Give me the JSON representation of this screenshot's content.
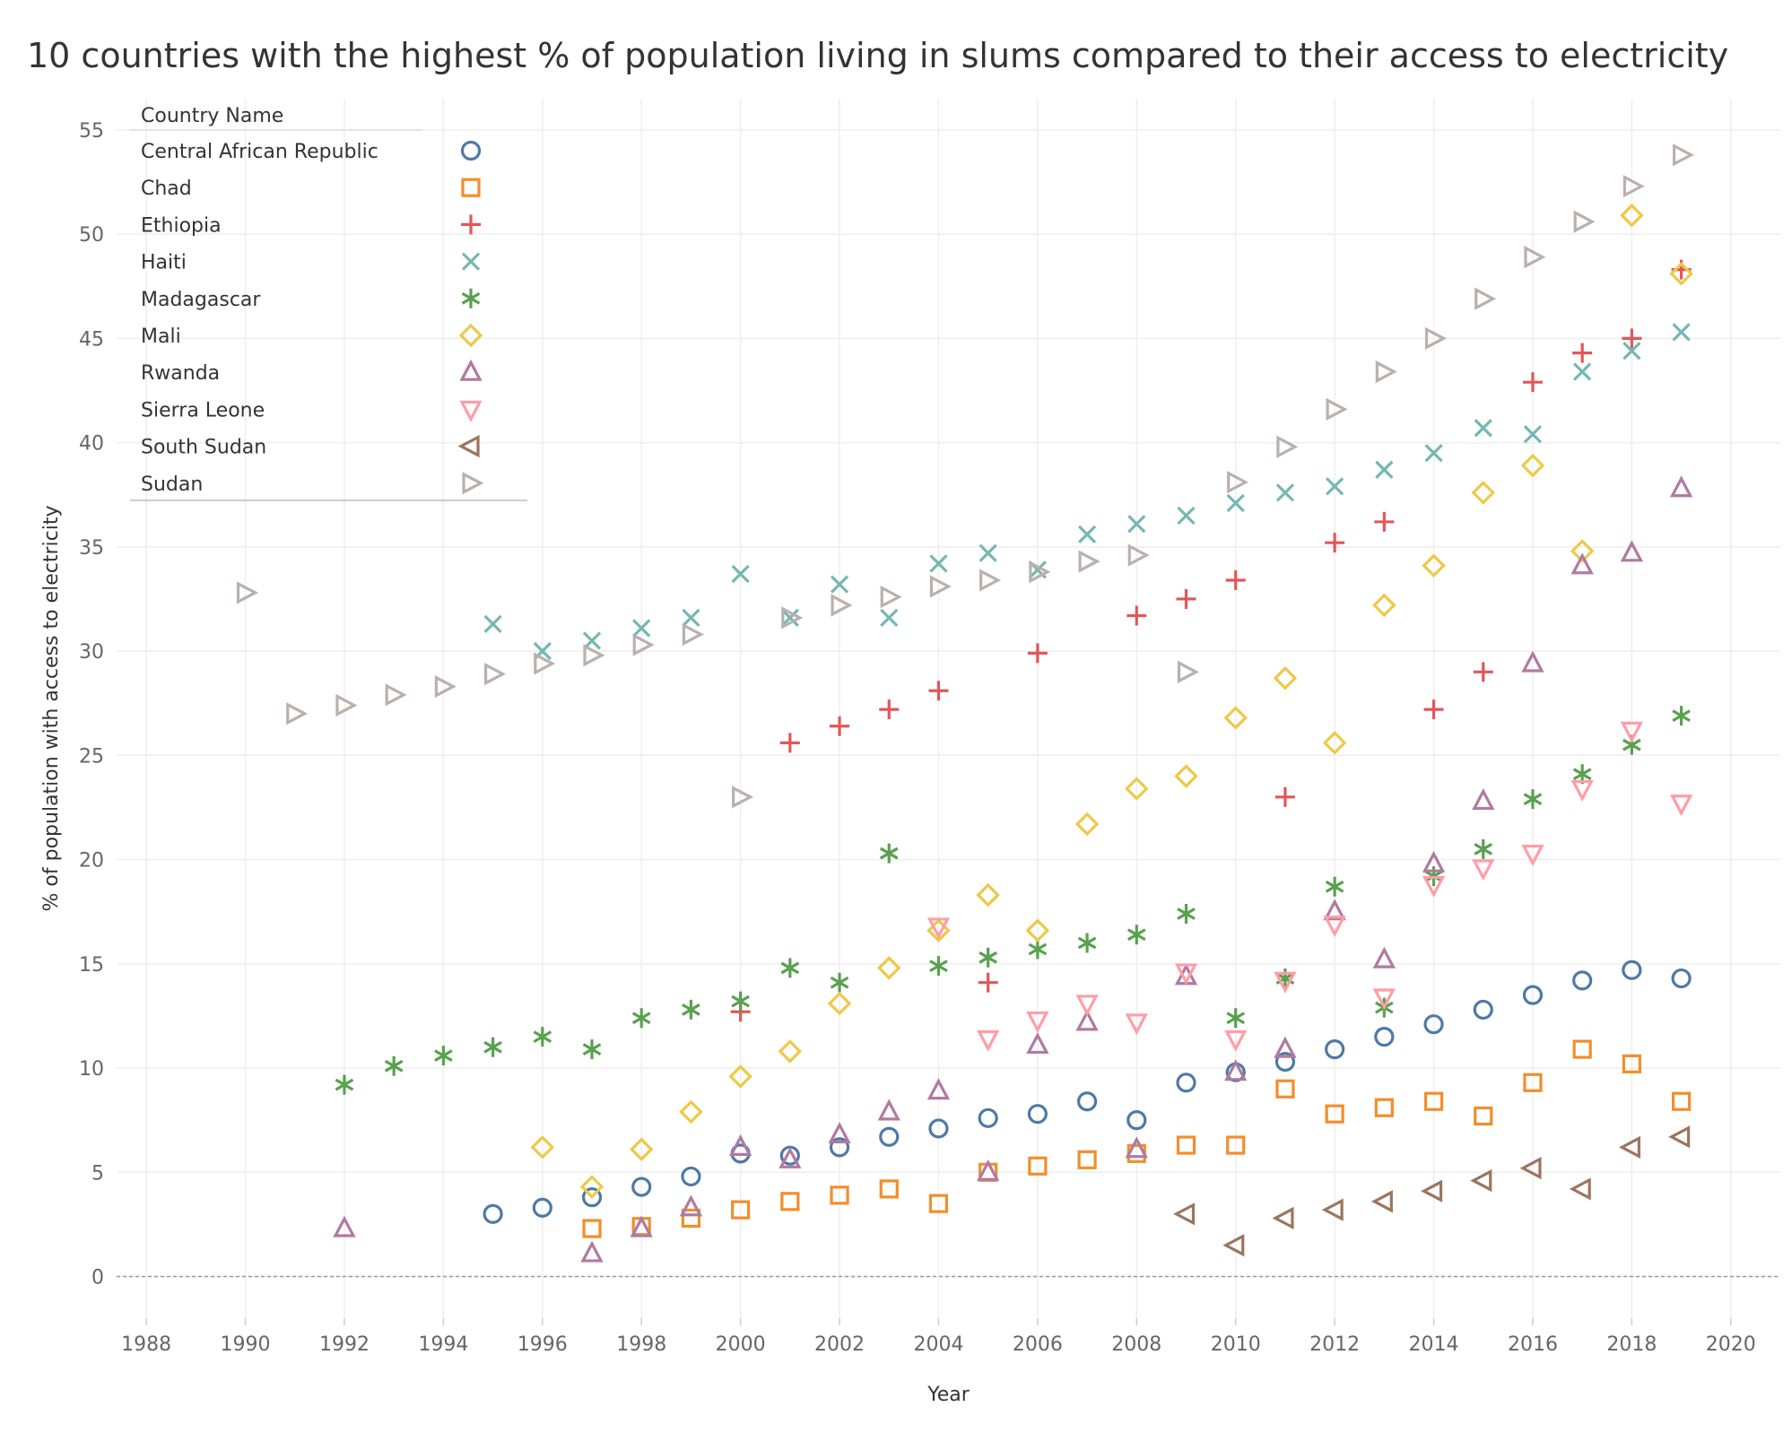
{
  "chart_data": {
    "type": "scatter",
    "title": "10 countries with the highest % of population living in slums compared to their access to electricity",
    "xlabel": "Year",
    "ylabel": "% of population with access to electricity",
    "xlim": [
      1987.4,
      2021
    ],
    "ylim": [
      -2,
      56.5
    ],
    "x_ticks": [
      1988,
      1990,
      1992,
      1994,
      1996,
      1998,
      2000,
      2002,
      2004,
      2006,
      2008,
      2010,
      2012,
      2014,
      2016,
      2018,
      2020
    ],
    "y_ticks": [
      0,
      5,
      10,
      15,
      20,
      25,
      30,
      35,
      40,
      45,
      50,
      55
    ],
    "grid": true,
    "legend": {
      "title": "Country Name",
      "placement": "top-left"
    },
    "series": [
      {
        "name": "Central African Republic",
        "color": "#4e79a7",
        "marker": "circle",
        "points": [
          [
            1995,
            3.0
          ],
          [
            1996,
            3.3
          ],
          [
            1997,
            3.8
          ],
          [
            1998,
            4.3
          ],
          [
            1999,
            4.8
          ],
          [
            2000,
            5.9
          ],
          [
            2001,
            5.8
          ],
          [
            2002,
            6.2
          ],
          [
            2003,
            6.7
          ],
          [
            2004,
            7.1
          ],
          [
            2005,
            7.6
          ],
          [
            2006,
            7.8
          ],
          [
            2007,
            8.4
          ],
          [
            2008,
            7.5
          ],
          [
            2009,
            9.3
          ],
          [
            2010,
            9.8
          ],
          [
            2011,
            10.3
          ],
          [
            2012,
            10.9
          ],
          [
            2013,
            11.5
          ],
          [
            2014,
            12.1
          ],
          [
            2015,
            12.8
          ],
          [
            2016,
            13.5
          ],
          [
            2017,
            14.2
          ],
          [
            2018,
            14.7
          ],
          [
            2019,
            14.3
          ]
        ]
      },
      {
        "name": "Chad",
        "color": "#f28e2b",
        "marker": "square",
        "points": [
          [
            1997,
            2.3
          ],
          [
            1998,
            2.4
          ],
          [
            1999,
            2.8
          ],
          [
            2000,
            3.2
          ],
          [
            2001,
            3.6
          ],
          [
            2002,
            3.9
          ],
          [
            2003,
            4.2
          ],
          [
            2004,
            3.5
          ],
          [
            2005,
            5.0
          ],
          [
            2006,
            5.3
          ],
          [
            2007,
            5.6
          ],
          [
            2008,
            5.9
          ],
          [
            2009,
            6.3
          ],
          [
            2010,
            6.3
          ],
          [
            2011,
            9.0
          ],
          [
            2012,
            7.8
          ],
          [
            2013,
            8.1
          ],
          [
            2014,
            8.4
          ],
          [
            2015,
            7.7
          ],
          [
            2016,
            9.3
          ],
          [
            2017,
            10.9
          ],
          [
            2018,
            10.2
          ],
          [
            2019,
            8.4
          ]
        ]
      },
      {
        "name": "Ethiopia",
        "color": "#e15759",
        "marker": "plus",
        "points": [
          [
            2000,
            12.7
          ],
          [
            2001,
            25.6
          ],
          [
            2002,
            26.4
          ],
          [
            2003,
            27.2
          ],
          [
            2004,
            28.1
          ],
          [
            2005,
            14.1
          ],
          [
            2006,
            29.9
          ],
          [
            2008,
            31.7
          ],
          [
            2009,
            32.5
          ],
          [
            2010,
            33.4
          ],
          [
            2011,
            23.0
          ],
          [
            2012,
            35.2
          ],
          [
            2013,
            36.2
          ],
          [
            2014,
            27.2
          ],
          [
            2015,
            29.0
          ],
          [
            2016,
            42.9
          ],
          [
            2017,
            44.3
          ],
          [
            2018,
            45.0
          ],
          [
            2019,
            48.3
          ]
        ]
      },
      {
        "name": "Haiti",
        "color": "#76b7b2",
        "marker": "x",
        "points": [
          [
            1995,
            31.3
          ],
          [
            1996,
            30.0
          ],
          [
            1997,
            30.5
          ],
          [
            1998,
            31.1
          ],
          [
            1999,
            31.6
          ],
          [
            2000,
            33.7
          ],
          [
            2001,
            31.6
          ],
          [
            2002,
            33.2
          ],
          [
            2003,
            31.6
          ],
          [
            2004,
            34.2
          ],
          [
            2005,
            34.7
          ],
          [
            2006,
            33.9
          ],
          [
            2007,
            35.6
          ],
          [
            2008,
            36.1
          ],
          [
            2009,
            36.5
          ],
          [
            2010,
            37.1
          ],
          [
            2011,
            37.6
          ],
          [
            2012,
            37.9
          ],
          [
            2013,
            38.7
          ],
          [
            2014,
            39.5
          ],
          [
            2015,
            40.7
          ],
          [
            2016,
            40.4
          ],
          [
            2017,
            43.4
          ],
          [
            2018,
            44.4
          ],
          [
            2019,
            45.3
          ]
        ]
      },
      {
        "name": "Madagascar",
        "color": "#59a14f",
        "marker": "asterisk",
        "points": [
          [
            1992,
            9.2
          ],
          [
            1993,
            10.1
          ],
          [
            1994,
            10.6
          ],
          [
            1995,
            11.0
          ],
          [
            1996,
            11.5
          ],
          [
            1997,
            10.9
          ],
          [
            1998,
            12.4
          ],
          [
            1999,
            12.8
          ],
          [
            2000,
            13.2
          ],
          [
            2001,
            14.8
          ],
          [
            2002,
            14.1
          ],
          [
            2003,
            20.3
          ],
          [
            2004,
            14.9
          ],
          [
            2005,
            15.3
          ],
          [
            2006,
            15.7
          ],
          [
            2007,
            16.0
          ],
          [
            2008,
            16.4
          ],
          [
            2009,
            17.4
          ],
          [
            2010,
            12.4
          ],
          [
            2011,
            14.3
          ],
          [
            2012,
            18.7
          ],
          [
            2013,
            12.9
          ],
          [
            2014,
            19.2
          ],
          [
            2015,
            20.5
          ],
          [
            2016,
            22.9
          ],
          [
            2017,
            24.1
          ],
          [
            2018,
            25.5
          ],
          [
            2019,
            26.9
          ]
        ]
      },
      {
        "name": "Mali",
        "color": "#edc948",
        "marker": "diamond",
        "points": [
          [
            1996,
            6.2
          ],
          [
            1997,
            4.3
          ],
          [
            1998,
            6.1
          ],
          [
            1999,
            7.9
          ],
          [
            2000,
            9.6
          ],
          [
            2001,
            10.8
          ],
          [
            2002,
            13.1
          ],
          [
            2003,
            14.8
          ],
          [
            2004,
            16.6
          ],
          [
            2005,
            18.3
          ],
          [
            2006,
            16.6
          ],
          [
            2007,
            21.7
          ],
          [
            2008,
            23.4
          ],
          [
            2009,
            24.0
          ],
          [
            2010,
            26.8
          ],
          [
            2011,
            28.7
          ],
          [
            2012,
            25.6
          ],
          [
            2013,
            32.2
          ],
          [
            2014,
            34.1
          ],
          [
            2015,
            37.6
          ],
          [
            2016,
            38.9
          ],
          [
            2017,
            34.8
          ],
          [
            2018,
            50.9
          ],
          [
            2019,
            48.1
          ]
        ]
      },
      {
        "name": "Rwanda",
        "color": "#b07aa1",
        "marker": "triangle-up",
        "points": [
          [
            1992,
            2.3
          ],
          [
            1997,
            1.1
          ],
          [
            1998,
            2.3
          ],
          [
            1999,
            3.3
          ],
          [
            2000,
            6.2
          ],
          [
            2001,
            5.6
          ],
          [
            2002,
            6.8
          ],
          [
            2003,
            7.9
          ],
          [
            2004,
            8.9
          ],
          [
            2005,
            5.0
          ],
          [
            2006,
            11.1
          ],
          [
            2007,
            12.2
          ],
          [
            2008,
            6.1
          ],
          [
            2009,
            14.4
          ],
          [
            2010,
            9.8
          ],
          [
            2011,
            10.9
          ],
          [
            2012,
            17.5
          ],
          [
            2013,
            15.2
          ],
          [
            2014,
            19.8
          ],
          [
            2015,
            22.8
          ],
          [
            2016,
            29.4
          ],
          [
            2017,
            34.1
          ],
          [
            2018,
            34.7
          ],
          [
            2019,
            37.8
          ]
        ]
      },
      {
        "name": "Sierra Leone",
        "color": "#ff9da7",
        "marker": "triangle-down",
        "points": [
          [
            2004,
            16.8
          ],
          [
            2005,
            11.4
          ],
          [
            2006,
            12.3
          ],
          [
            2007,
            13.1
          ],
          [
            2008,
            12.2
          ],
          [
            2009,
            14.6
          ],
          [
            2010,
            11.4
          ],
          [
            2011,
            14.2
          ],
          [
            2012,
            16.9
          ],
          [
            2013,
            13.4
          ],
          [
            2014,
            18.8
          ],
          [
            2015,
            19.6
          ],
          [
            2016,
            20.3
          ],
          [
            2017,
            23.4
          ],
          [
            2018,
            26.2
          ],
          [
            2019,
            22.7
          ]
        ]
      },
      {
        "name": "South Sudan",
        "color": "#9c755f",
        "marker": "triangle-left",
        "points": [
          [
            2009,
            3.0
          ],
          [
            2010,
            1.5
          ],
          [
            2011,
            2.8
          ],
          [
            2012,
            3.2
          ],
          [
            2013,
            3.6
          ],
          [
            2014,
            4.1
          ],
          [
            2015,
            4.6
          ],
          [
            2016,
            5.2
          ],
          [
            2017,
            4.2
          ],
          [
            2018,
            6.2
          ],
          [
            2019,
            6.7
          ]
        ]
      },
      {
        "name": "Sudan",
        "color": "#bab0ac",
        "marker": "triangle-right",
        "points": [
          [
            1990,
            32.8
          ],
          [
            1991,
            27.0
          ],
          [
            1992,
            27.4
          ],
          [
            1993,
            27.9
          ],
          [
            1994,
            28.3
          ],
          [
            1995,
            28.9
          ],
          [
            1996,
            29.4
          ],
          [
            1997,
            29.8
          ],
          [
            1998,
            30.3
          ],
          [
            1999,
            30.8
          ],
          [
            2000,
            23.0
          ],
          [
            2001,
            31.6
          ],
          [
            2002,
            32.2
          ],
          [
            2003,
            32.6
          ],
          [
            2004,
            33.1
          ],
          [
            2005,
            33.4
          ],
          [
            2006,
            33.8
          ],
          [
            2007,
            34.3
          ],
          [
            2008,
            34.6
          ],
          [
            2009,
            29.0
          ],
          [
            2010,
            38.1
          ],
          [
            2011,
            39.8
          ],
          [
            2012,
            41.6
          ],
          [
            2013,
            43.4
          ],
          [
            2014,
            45.0
          ],
          [
            2015,
            46.9
          ],
          [
            2016,
            48.9
          ],
          [
            2017,
            50.6
          ],
          [
            2018,
            52.3
          ],
          [
            2019,
            53.8
          ]
        ]
      }
    ]
  }
}
